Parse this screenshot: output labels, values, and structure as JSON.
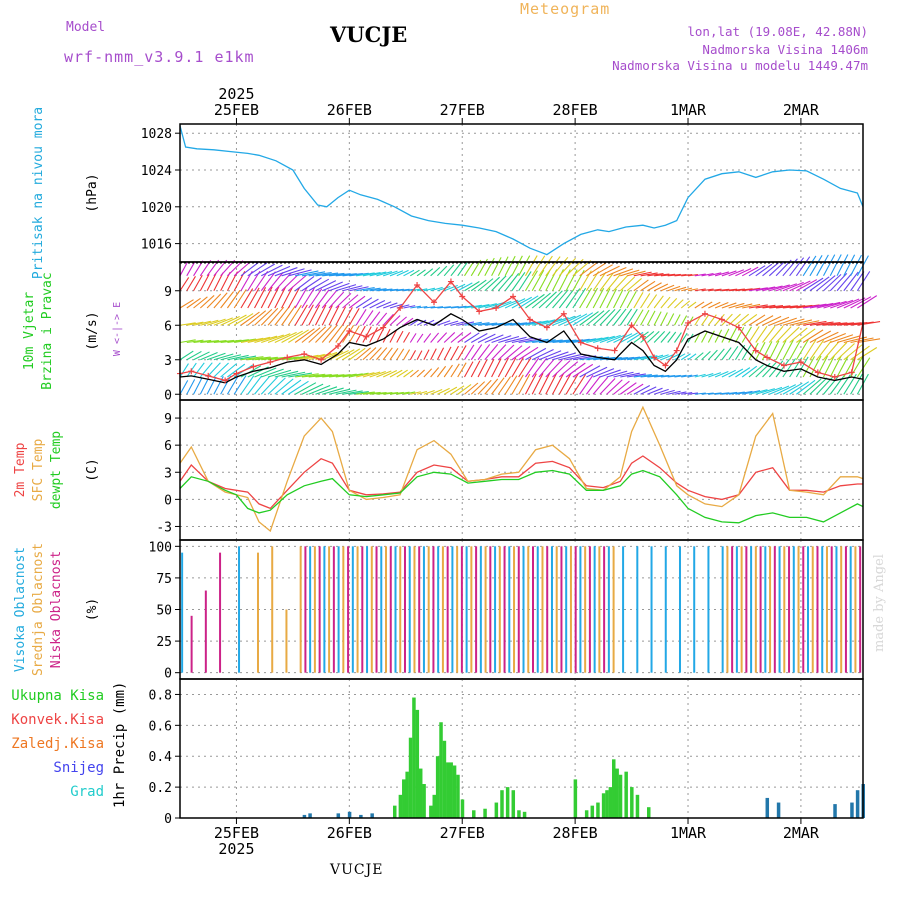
{
  "header": {
    "model_label": "Model",
    "model_name": "wrf-nmm_v3.9.1  e1km",
    "station": "VUCJE",
    "title": "Meteogram",
    "coords": "lon,lat (19.08E, 42.88N)",
    "altitude": "Nadmorska Visina 1406m",
    "model_altitude": "Nadmorska Visina u modelu 1449.47m"
  },
  "footer": {
    "station": "VUCJE",
    "credit": "made by Angel"
  },
  "chart_data": {
    "type": "line",
    "time_axis": {
      "year": "2025",
      "day_labels": [
        "25FEB",
        "26FEB",
        "27FEB",
        "28FEB",
        "1MAR",
        "2MAR"
      ],
      "start_day": 24.5,
      "end_day": 30.55
    },
    "panels": [
      {
        "id": "pressure",
        "labels": [
          "Pritisak na nivou mora"
        ],
        "label_colors": [
          "#22aadd"
        ],
        "unit": "(hPa)",
        "ylim": [
          1014,
          1029
        ],
        "yticks": [
          1016,
          1020,
          1024,
          1028
        ],
        "series": [
          {
            "color": "#22a8e6",
            "x": [
              24.5,
              24.55,
              24.65,
              24.8,
              24.95,
              25.1,
              25.2,
              25.35,
              25.5,
              25.6,
              25.72,
              25.8,
              25.9,
              26.0,
              26.1,
              26.25,
              26.4,
              26.55,
              26.7,
              26.85,
              27.0,
              27.15,
              27.3,
              27.45,
              27.6,
              27.75,
              27.9,
              28.05,
              28.2,
              28.3,
              28.45,
              28.6,
              28.7,
              28.8,
              28.9,
              29.0,
              29.15,
              29.3,
              29.45,
              29.6,
              29.75,
              29.9,
              30.05,
              30.2,
              30.35,
              30.5,
              30.55
            ],
            "y": [
              1028.8,
              1026.5,
              1026.3,
              1026.2,
              1026.0,
              1025.8,
              1025.6,
              1025.0,
              1024.0,
              1022.0,
              1020.2,
              1020.0,
              1021.0,
              1021.8,
              1021.3,
              1020.8,
              1020.0,
              1019.0,
              1018.5,
              1018.2,
              1018.0,
              1017.7,
              1017.3,
              1016.5,
              1015.5,
              1014.8,
              1016.0,
              1017.0,
              1017.5,
              1017.3,
              1017.8,
              1018.0,
              1017.7,
              1018.0,
              1018.5,
              1021.0,
              1023.0,
              1023.6,
              1023.8,
              1023.2,
              1023.8,
              1024.0,
              1023.9,
              1023.0,
              1022.0,
              1021.5,
              1020.0
            ]
          }
        ]
      },
      {
        "id": "wind",
        "labels": [
          "10m Vjetar",
          "Brzina i Pravac"
        ],
        "label_colors": [
          "#22cc22",
          "#22cc22"
        ],
        "unit": "(m/s)",
        "compass": "W  <-|->  E",
        "ylim": [
          -0.5,
          11.5
        ],
        "yticks": [
          0,
          3,
          6,
          9
        ],
        "series": [
          {
            "color": "#000000",
            "x": [
              24.5,
              24.6,
              24.75,
              24.9,
              25.0,
              25.15,
              25.3,
              25.45,
              25.6,
              25.75,
              25.9,
              26.0,
              26.15,
              26.3,
              26.45,
              26.6,
              26.75,
              26.9,
              27.0,
              27.15,
              27.3,
              27.45,
              27.6,
              27.75,
              27.9,
              28.05,
              28.2,
              28.35,
              28.5,
              28.6,
              28.7,
              28.8,
              28.9,
              29.0,
              29.15,
              29.3,
              29.45,
              29.6,
              29.7,
              29.85,
              30.0,
              30.15,
              30.3,
              30.45,
              30.55
            ],
            "y": [
              1.5,
              1.6,
              1.3,
              1.0,
              1.5,
              2.0,
              2.3,
              2.8,
              3.0,
              2.6,
              3.5,
              4.5,
              4.2,
              4.8,
              5.8,
              6.5,
              6.0,
              7.0,
              6.5,
              5.5,
              5.8,
              6.5,
              5.0,
              4.5,
              5.5,
              3.5,
              3.2,
              3.0,
              4.5,
              3.8,
              2.5,
              2.0,
              3.0,
              4.8,
              5.5,
              5.0,
              4.5,
              3.0,
              2.5,
              2.0,
              2.2,
              1.5,
              1.2,
              1.5,
              1.3
            ]
          },
          {
            "color": "#ee4444",
            "x": [
              24.5,
              24.6,
              24.75,
              24.9,
              25.0,
              25.15,
              25.3,
              25.45,
              25.6,
              25.75,
              25.9,
              26.0,
              26.15,
              26.3,
              26.45,
              26.6,
              26.75,
              26.9,
              27.0,
              27.15,
              27.3,
              27.45,
              27.6,
              27.75,
              27.9,
              28.05,
              28.2,
              28.35,
              28.5,
              28.6,
              28.7,
              28.8,
              28.9,
              29.0,
              29.15,
              29.3,
              29.45,
              29.6,
              29.7,
              29.85,
              30.0,
              30.15,
              30.3,
              30.45,
              30.55
            ],
            "y": [
              1.8,
              2.0,
              1.6,
              1.2,
              1.8,
              2.4,
              2.8,
              3.2,
              3.5,
              3.0,
              4.2,
              5.5,
              5.0,
              5.8,
              7.5,
              9.5,
              8.0,
              9.8,
              8.5,
              7.2,
              7.5,
              8.5,
              6.5,
              5.8,
              7.0,
              4.5,
              4.0,
              3.8,
              6.0,
              5.0,
              3.2,
              2.5,
              3.8,
              6.2,
              7.0,
              6.5,
              5.8,
              3.8,
              3.2,
              2.5,
              2.8,
              1.9,
              1.5,
              1.9,
              6.2
            ]
          }
        ]
      },
      {
        "id": "temperature",
        "labels": [
          "2m Temp",
          "SFC Temp",
          "dewpt Temp"
        ],
        "label_colors": [
          "#ee4444",
          "#e8aa44",
          "#22cc22"
        ],
        "unit": "(C)",
        "ylim": [
          -4.5,
          11
        ],
        "yticks": [
          -3,
          0,
          3,
          6,
          9
        ],
        "series": [
          {
            "name": "2m Temp",
            "color": "#ee4444",
            "x": [
              24.5,
              24.6,
              24.75,
              24.9,
              25.0,
              25.1,
              25.2,
              25.3,
              25.45,
              25.6,
              25.75,
              25.85,
              26.0,
              26.15,
              26.3,
              26.45,
              26.6,
              26.75,
              26.9,
              27.05,
              27.2,
              27.35,
              27.5,
              27.65,
              27.8,
              27.95,
              28.1,
              28.25,
              28.4,
              28.5,
              28.6,
              28.75,
              28.9,
              29.0,
              29.15,
              29.3,
              29.45,
              29.6,
              29.75,
              29.9,
              30.05,
              30.2,
              30.35,
              30.5,
              30.55
            ],
            "y": [
              2.0,
              3.8,
              2.0,
              1.2,
              1.0,
              0.8,
              -0.5,
              -1.0,
              1.0,
              3.0,
              4.5,
              4.0,
              1.0,
              0.5,
              0.6,
              0.8,
              3.0,
              3.8,
              3.5,
              2.0,
              2.2,
              2.5,
              2.5,
              4.0,
              4.2,
              3.5,
              1.5,
              1.3,
              2.0,
              4.0,
              4.8,
              3.5,
              1.8,
              1.0,
              0.3,
              0.0,
              0.5,
              3.0,
              3.5,
              1.0,
              1.0,
              0.8,
              1.5,
              1.7,
              1.7
            ]
          },
          {
            "name": "SFC Temp",
            "color": "#e8aa44",
            "x": [
              24.5,
              24.6,
              24.75,
              24.9,
              25.0,
              25.1,
              25.2,
              25.3,
              25.45,
              25.6,
              25.75,
              25.85,
              26.0,
              26.15,
              26.3,
              26.45,
              26.6,
              26.75,
              26.9,
              27.05,
              27.2,
              27.35,
              27.5,
              27.65,
              27.8,
              27.95,
              28.1,
              28.25,
              28.4,
              28.5,
              28.6,
              28.75,
              28.9,
              29.0,
              29.15,
              29.3,
              29.45,
              29.6,
              29.75,
              29.9,
              30.05,
              30.2,
              30.35,
              30.5,
              30.55
            ],
            "y": [
              4.0,
              5.8,
              2.0,
              0.8,
              0.5,
              0.2,
              -2.5,
              -3.5,
              2.0,
              7.0,
              9.0,
              7.5,
              1.0,
              0.0,
              0.2,
              0.5,
              5.5,
              6.5,
              5.0,
              2.0,
              2.2,
              2.8,
              3.0,
              5.5,
              6.0,
              4.5,
              1.2,
              1.0,
              2.5,
              7.5,
              10.2,
              6.0,
              1.5,
              0.5,
              -0.5,
              -0.8,
              0.5,
              7.0,
              9.5,
              1.0,
              0.8,
              0.5,
              2.5,
              2.5,
              2.3
            ]
          },
          {
            "name": "dewpt Temp",
            "color": "#22cc22",
            "x": [
              24.5,
              24.6,
              24.75,
              24.9,
              25.0,
              25.1,
              25.2,
              25.3,
              25.45,
              25.6,
              25.75,
              25.85,
              26.0,
              26.15,
              26.3,
              26.45,
              26.6,
              26.75,
              26.9,
              27.05,
              27.2,
              27.35,
              27.5,
              27.65,
              27.8,
              27.95,
              28.1,
              28.25,
              28.4,
              28.5,
              28.6,
              28.75,
              28.9,
              29.0,
              29.15,
              29.3,
              29.45,
              29.6,
              29.75,
              29.9,
              30.05,
              30.2,
              30.35,
              30.5,
              30.55
            ],
            "y": [
              1.2,
              2.5,
              2.0,
              1.0,
              0.5,
              -1.0,
              -1.5,
              -1.2,
              0.5,
              1.5,
              2.0,
              2.3,
              0.5,
              0.3,
              0.5,
              0.7,
              2.5,
              3.0,
              2.8,
              1.8,
              2.0,
              2.2,
              2.2,
              3.0,
              3.2,
              2.8,
              1.0,
              1.0,
              1.5,
              2.8,
              3.2,
              2.5,
              0.5,
              -1.0,
              -2.0,
              -2.5,
              -2.6,
              -1.8,
              -1.5,
              -2.0,
              -2.0,
              -2.5,
              -1.5,
              -0.5,
              -0.8
            ]
          }
        ]
      },
      {
        "id": "clouds",
        "labels": [
          "Visoka Oblacnost",
          "Srednja Oblacnost",
          "Niska Oblacnost"
        ],
        "label_colors": [
          "#22aadd",
          "#e8aa44",
          "#cc2288"
        ],
        "unit": "(%)",
        "ylim": [
          -5,
          105
        ],
        "yticks": [
          0,
          25,
          50,
          75,
          100
        ],
        "bar_colors": {
          "high": "#22a8e6",
          "mid": "#e8aa44",
          "low": "#cc2288"
        }
      },
      {
        "id": "precip",
        "labels": [
          "1hr Precip (mm)"
        ],
        "label_colors": [
          "#000000"
        ],
        "unit": "",
        "ylim": [
          0,
          0.9
        ],
        "yticks": [
          0,
          0.2,
          0.4,
          0.6,
          0.8
        ],
        "legend": [
          {
            "name": "Ukupna Kisa",
            "color": "#22cc22"
          },
          {
            "name": "Konvek.Kisa",
            "color": "#ee4444"
          },
          {
            "name": "Zaledj.Kisa",
            "color": "#ee7722"
          },
          {
            "name": "Snijeg",
            "color": "#4444ee"
          },
          {
            "name": "Grad",
            "color": "#22cccc"
          }
        ],
        "bars": {
          "color": "#33cc33",
          "x": [
            26.4,
            26.45,
            26.48,
            26.51,
            26.54,
            26.57,
            26.6,
            26.63,
            26.66,
            26.72,
            26.75,
            26.78,
            26.81,
            26.84,
            26.87,
            26.9,
            26.93,
            26.96,
            27.0,
            27.1,
            27.2,
            27.3,
            27.35,
            27.4,
            27.45,
            27.5,
            27.55,
            28.0,
            28.1,
            28.15,
            28.2,
            28.25,
            28.28,
            28.31,
            28.34,
            28.37,
            28.4,
            28.45,
            28.5,
            28.55,
            28.65
          ],
          "y": [
            0.08,
            0.15,
            0.25,
            0.3,
            0.52,
            0.78,
            0.7,
            0.32,
            0.22,
            0.08,
            0.15,
            0.4,
            0.62,
            0.5,
            0.36,
            0.36,
            0.34,
            0.28,
            0.12,
            0.05,
            0.06,
            0.1,
            0.18,
            0.2,
            0.18,
            0.05,
            0.04,
            0.25,
            0.05,
            0.08,
            0.1,
            0.16,
            0.18,
            0.2,
            0.38,
            0.32,
            0.28,
            0.3,
            0.2,
            0.15,
            0.07
          ]
        },
        "snow_bars": {
          "color": "#2277aa",
          "x": [
            25.6,
            25.65,
            25.9,
            26.0,
            26.1,
            26.2,
            29.7,
            29.8,
            30.3,
            30.45,
            30.5,
            30.55
          ],
          "y": [
            0.02,
            0.03,
            0.03,
            0.04,
            0.02,
            0.03,
            0.13,
            0.1,
            0.09,
            0.1,
            0.18,
            0.22
          ]
        }
      }
    ]
  }
}
